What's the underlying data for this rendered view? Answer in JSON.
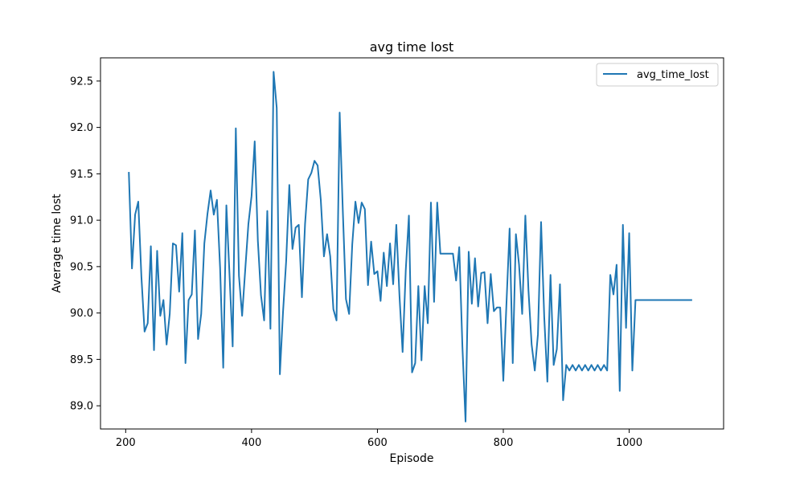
{
  "chart_data": {
    "type": "line",
    "title": "avg time lost",
    "xlabel": "Episode",
    "ylabel": "Average time lost",
    "xlim": [
      160,
      1150
    ],
    "ylim": [
      88.75,
      92.75
    ],
    "x_ticks": [
      200,
      400,
      600,
      800,
      1000
    ],
    "x_tick_labels": [
      "200",
      "400",
      "600",
      "800",
      "1000"
    ],
    "y_ticks": [
      89.0,
      89.5,
      90.0,
      90.5,
      91.0,
      91.5,
      92.0,
      92.5
    ],
    "y_tick_labels": [
      "89.0",
      "89.5",
      "90.0",
      "90.5",
      "91.0",
      "91.5",
      "92.0",
      "92.5"
    ],
    "grid": false,
    "legend_position": "top-right",
    "series": [
      {
        "name": "avg_time_lost",
        "color": "#1f77b4",
        "points": [
          [
            205,
            91.52
          ],
          [
            210,
            90.48
          ],
          [
            215,
            91.06
          ],
          [
            220,
            91.2
          ],
          [
            225,
            90.39
          ],
          [
            230,
            89.8
          ],
          [
            235,
            89.89
          ],
          [
            240,
            90.72
          ],
          [
            245,
            89.6
          ],
          [
            250,
            90.67
          ],
          [
            255,
            89.97
          ],
          [
            260,
            90.14
          ],
          [
            265,
            89.66
          ],
          [
            270,
            89.99
          ],
          [
            275,
            90.75
          ],
          [
            280,
            90.73
          ],
          [
            285,
            90.23
          ],
          [
            290,
            90.86
          ],
          [
            295,
            89.46
          ],
          [
            300,
            90.14
          ],
          [
            305,
            90.2
          ],
          [
            310,
            90.89
          ],
          [
            315,
            89.72
          ],
          [
            320,
            89.99
          ],
          [
            325,
            90.75
          ],
          [
            330,
            91.07
          ],
          [
            335,
            91.32
          ],
          [
            340,
            91.06
          ],
          [
            345,
            91.22
          ],
          [
            350,
            90.49
          ],
          [
            355,
            89.41
          ],
          [
            360,
            91.16
          ],
          [
            365,
            90.41
          ],
          [
            370,
            89.64
          ],
          [
            375,
            91.99
          ],
          [
            380,
            90.4
          ],
          [
            385,
            89.97
          ],
          [
            390,
            90.47
          ],
          [
            395,
            90.96
          ],
          [
            400,
            91.26
          ],
          [
            405,
            91.85
          ],
          [
            410,
            90.78
          ],
          [
            415,
            90.19
          ],
          [
            420,
            89.92
          ],
          [
            425,
            91.1
          ],
          [
            430,
            89.83
          ],
          [
            435,
            92.6
          ],
          [
            440,
            92.21
          ],
          [
            445,
            89.34
          ],
          [
            450,
            90.01
          ],
          [
            455,
            90.56
          ],
          [
            460,
            91.38
          ],
          [
            465,
            90.69
          ],
          [
            470,
            90.92
          ],
          [
            475,
            90.95
          ],
          [
            480,
            90.17
          ],
          [
            485,
            90.96
          ],
          [
            490,
            91.44
          ],
          [
            495,
            91.51
          ],
          [
            500,
            91.64
          ],
          [
            505,
            91.59
          ],
          [
            510,
            91.22
          ],
          [
            515,
            90.61
          ],
          [
            520,
            90.85
          ],
          [
            525,
            90.61
          ],
          [
            530,
            90.04
          ],
          [
            535,
            89.92
          ],
          [
            540,
            92.16
          ],
          [
            545,
            91.1
          ],
          [
            550,
            90.15
          ],
          [
            555,
            89.99
          ],
          [
            560,
            90.74
          ],
          [
            565,
            91.2
          ],
          [
            570,
            90.97
          ],
          [
            575,
            91.19
          ],
          [
            580,
            91.12
          ],
          [
            585,
            90.3
          ],
          [
            590,
            90.77
          ],
          [
            595,
            90.42
          ],
          [
            600,
            90.45
          ],
          [
            605,
            90.13
          ],
          [
            610,
            90.65
          ],
          [
            615,
            90.29
          ],
          [
            620,
            90.75
          ],
          [
            625,
            90.31
          ],
          [
            630,
            90.95
          ],
          [
            635,
            90.19
          ],
          [
            640,
            89.58
          ],
          [
            645,
            90.46
          ],
          [
            650,
            91.05
          ],
          [
            655,
            89.36
          ],
          [
            660,
            89.46
          ],
          [
            665,
            90.29
          ],
          [
            670,
            89.49
          ],
          [
            675,
            90.29
          ],
          [
            680,
            89.89
          ],
          [
            685,
            91.19
          ],
          [
            690,
            90.12
          ],
          [
            695,
            91.19
          ],
          [
            700,
            90.64
          ],
          [
            705,
            90.64
          ],
          [
            710,
            90.64
          ],
          [
            715,
            90.64
          ],
          [
            720,
            90.64
          ],
          [
            725,
            90.35
          ],
          [
            730,
            90.71
          ],
          [
            735,
            89.64
          ],
          [
            740,
            88.83
          ],
          [
            745,
            90.66
          ],
          [
            750,
            90.1
          ],
          [
            755,
            90.59
          ],
          [
            760,
            90.07
          ],
          [
            765,
            90.43
          ],
          [
            770,
            90.44
          ],
          [
            775,
            89.89
          ],
          [
            780,
            90.42
          ],
          [
            785,
            90.02
          ],
          [
            790,
            90.06
          ],
          [
            795,
            90.06
          ],
          [
            800,
            89.27
          ],
          [
            805,
            90.1
          ],
          [
            810,
            90.91
          ],
          [
            815,
            89.46
          ],
          [
            820,
            90.85
          ],
          [
            825,
            90.52
          ],
          [
            830,
            89.99
          ],
          [
            835,
            91.05
          ],
          [
            840,
            90.24
          ],
          [
            845,
            89.66
          ],
          [
            850,
            89.38
          ],
          [
            855,
            89.77
          ],
          [
            860,
            90.98
          ],
          [
            865,
            89.96
          ],
          [
            870,
            89.26
          ],
          [
            875,
            90.41
          ],
          [
            880,
            89.44
          ],
          [
            885,
            89.61
          ],
          [
            890,
            90.31
          ],
          [
            895,
            89.06
          ],
          [
            900,
            89.44
          ],
          [
            905,
            89.38
          ],
          [
            910,
            89.44
          ],
          [
            915,
            89.38
          ],
          [
            920,
            89.44
          ],
          [
            925,
            89.38
          ],
          [
            930,
            89.44
          ],
          [
            935,
            89.38
          ],
          [
            940,
            89.44
          ],
          [
            945,
            89.38
          ],
          [
            950,
            89.44
          ],
          [
            955,
            89.38
          ],
          [
            960,
            89.44
          ],
          [
            965,
            89.38
          ],
          [
            970,
            90.41
          ],
          [
            975,
            90.2
          ],
          [
            980,
            90.52
          ],
          [
            985,
            89.16
          ],
          [
            990,
            90.95
          ],
          [
            995,
            89.84
          ],
          [
            1000,
            90.86
          ],
          [
            1005,
            89.38
          ],
          [
            1010,
            90.14
          ],
          [
            1015,
            90.14
          ],
          [
            1020,
            90.14
          ],
          [
            1025,
            90.14
          ],
          [
            1030,
            90.14
          ],
          [
            1035,
            90.14
          ],
          [
            1040,
            90.14
          ],
          [
            1045,
            90.14
          ],
          [
            1050,
            90.14
          ],
          [
            1055,
            90.14
          ],
          [
            1060,
            90.14
          ],
          [
            1065,
            90.14
          ],
          [
            1070,
            90.14
          ],
          [
            1075,
            90.14
          ],
          [
            1080,
            90.14
          ],
          [
            1085,
            90.14
          ],
          [
            1090,
            90.14
          ],
          [
            1095,
            90.14
          ],
          [
            1100,
            90.14
          ]
        ]
      }
    ]
  }
}
